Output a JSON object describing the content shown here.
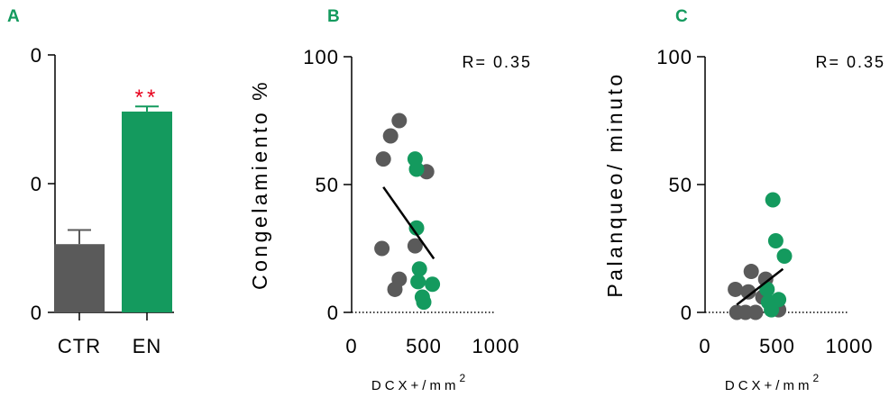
{
  "colors": {
    "gray": "#5a5a5a",
    "green": "#149a5e",
    "star": "#e8001c",
    "axis": "#000000"
  },
  "chart_data": [
    {
      "panel": "A",
      "type": "bar",
      "categories": [
        "CTR",
        "EN"
      ],
      "values": [
        0.53,
        1.56
      ],
      "errors": [
        0.11,
        0.04
      ],
      "colors": [
        "#5a5a5a",
        "#149a5e"
      ],
      "annotation": {
        "category": "EN",
        "text": "**"
      },
      "yticks": [
        "0",
        "0",
        "0"
      ],
      "ylim": [
        0,
        2
      ],
      "xlabel": "",
      "ylabel": ""
    },
    {
      "panel": "B",
      "type": "scatter",
      "ylabel": "Congelamiento %",
      "xlabel": "DCX+/mm",
      "xlabel_sup": "2",
      "xlim": [
        0,
        1000
      ],
      "ylim": [
        0,
        100
      ],
      "xticks": [
        0,
        500,
        1000
      ],
      "yticks": [
        0,
        50,
        100
      ],
      "annotation": "R= 0.35",
      "series": [
        {
          "color": "#5a5a5a",
          "points": [
            [
              330,
              75
            ],
            [
              270,
              69
            ],
            [
              220,
              60
            ],
            [
              520,
              55
            ],
            [
              440,
              26
            ],
            [
              210,
              25
            ],
            [
              330,
              13
            ],
            [
              300,
              9
            ]
          ]
        },
        {
          "color": "#149a5e",
          "points": [
            [
              440,
              60
            ],
            [
              450,
              56
            ],
            [
              450,
              33
            ],
            [
              470,
              17
            ],
            [
              460,
              12
            ],
            [
              560,
              11
            ],
            [
              490,
              6
            ],
            [
              500,
              4
            ]
          ]
        }
      ],
      "fit_line": [
        [
          220,
          49
        ],
        [
          570,
          21
        ]
      ],
      "baseline": {
        "y": 0,
        "style": "dotted"
      }
    },
    {
      "panel": "C",
      "type": "scatter",
      "ylabel": "Palanqueo/ minuto",
      "xlabel": "DCX+/mm",
      "xlabel_sup": "2",
      "xlim": [
        0,
        1000
      ],
      "ylim": [
        0,
        100
      ],
      "xticks": [
        0,
        500,
        1000
      ],
      "yticks": [
        0,
        50,
        100
      ],
      "annotation": "R= 0.35",
      "series": [
        {
          "color": "#5a5a5a",
          "points": [
            [
              210,
              9
            ],
            [
              320,
              16
            ],
            [
              420,
              13
            ],
            [
              300,
              8
            ],
            [
              400,
              6
            ],
            [
              220,
              0
            ],
            [
              280,
              0
            ],
            [
              350,
              0
            ],
            [
              510,
              1
            ]
          ]
        },
        {
          "color": "#149a5e",
          "points": [
            [
              470,
              44
            ],
            [
              490,
              28
            ],
            [
              550,
              22
            ],
            [
              430,
              9
            ],
            [
              510,
              5
            ],
            [
              440,
              4
            ],
            [
              460,
              1
            ]
          ]
        }
      ],
      "fit_line": [
        [
          220,
          3
        ],
        [
          540,
          17
        ]
      ],
      "baseline": {
        "y": 0,
        "style": "dotted"
      }
    }
  ]
}
